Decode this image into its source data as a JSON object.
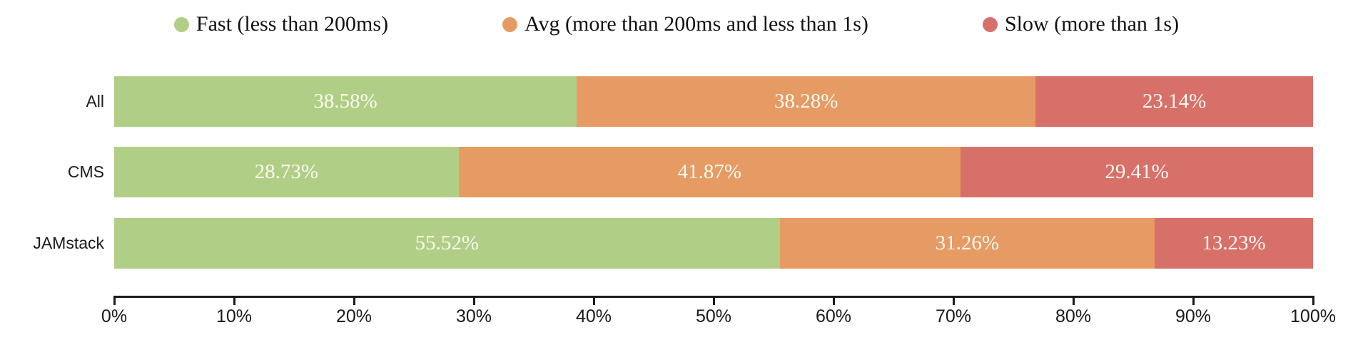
{
  "legend": {
    "items": [
      {
        "id": "fast",
        "label": "Fast (less than 200ms)",
        "color": "#b1ce86"
      },
      {
        "id": "avg",
        "label": "Avg (more than 200ms and less than 1s)",
        "color": "#e69b64"
      },
      {
        "id": "slow",
        "label": "Slow (more than 1s)",
        "color": "#d8706a"
      }
    ]
  },
  "chart_data": {
    "type": "bar",
    "orientation": "horizontal",
    "stacked": true,
    "title": "",
    "categories": [
      "All",
      "CMS",
      "JAMstack"
    ],
    "series": [
      {
        "name": "Fast (less than 200ms)",
        "color": "#b1ce86",
        "values": [
          38.58,
          28.73,
          55.52
        ]
      },
      {
        "name": "Avg (more than 200ms and less than 1s)",
        "color": "#e69b64",
        "values": [
          38.28,
          41.87,
          31.26
        ]
      },
      {
        "name": "Slow (more than 1s)",
        "color": "#d8706a",
        "values": [
          23.14,
          29.41,
          13.23
        ]
      }
    ],
    "value_labels": [
      [
        "38.58%",
        "38.28%",
        "23.14%"
      ],
      [
        "28.73%",
        "41.87%",
        "29.41%"
      ],
      [
        "55.52%",
        "31.26%",
        "13.23%"
      ]
    ],
    "x_ticks": [
      "0%",
      "10%",
      "20%",
      "30%",
      "40%",
      "50%",
      "60%",
      "70%",
      "80%",
      "90%",
      "100%"
    ],
    "xlim": [
      0,
      100
    ],
    "grid": false,
    "legend_position": "top",
    "value_text_color": "#fbfaf2",
    "axis_color": "#1a1a1a"
  },
  "layout": {
    "row_tops": [
      107,
      206,
      306
    ],
    "axis_x0": 160,
    "axis_step": 168
  }
}
